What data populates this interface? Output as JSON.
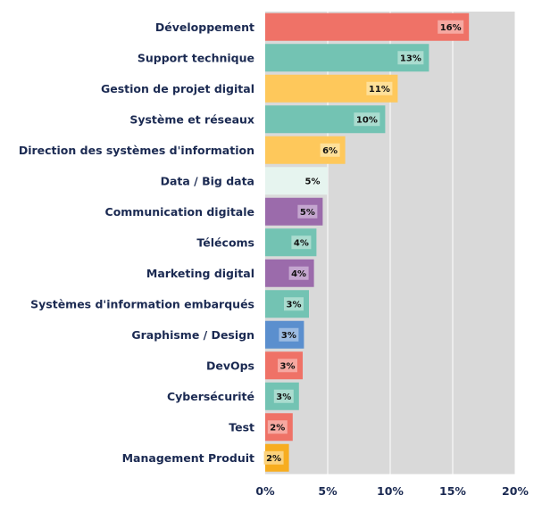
{
  "chart_data": {
    "type": "bar",
    "orientation": "horizontal",
    "title": "",
    "xlabel": "",
    "ylabel": "",
    "xlim": [
      0,
      20
    ],
    "x_ticks": [
      "0%",
      "5%",
      "10%",
      "15%",
      "20%"
    ],
    "grid": true,
    "legend": "none",
    "categories": [
      "Développement",
      "Support technique",
      "Gestion de projet digital",
      "Système et réseaux",
      "Direction des systèmes d'information",
      "Data / Big data",
      "Communication digitale",
      "Télécoms",
      "Marketing digital",
      "Systèmes d'information embarqués",
      "Graphisme / Design",
      "DevOps",
      "Cybersécurité",
      "Test",
      "Management Produit"
    ],
    "values": [
      16.3,
      13.1,
      10.6,
      9.6,
      6.4,
      5.0,
      4.6,
      4.1,
      3.9,
      3.5,
      3.1,
      3.0,
      2.7,
      2.2,
      1.9
    ],
    "value_labels": [
      "16%",
      "13%",
      "11%",
      "10%",
      "6%",
      "5%",
      "5%",
      "4%",
      "4%",
      "3%",
      "3%",
      "3%",
      "3%",
      "2%",
      "2%"
    ],
    "bar_colors": [
      "#ef7267",
      "#73c3b3",
      "#fec85b",
      "#73c3b3",
      "#fec85b",
      "#e6f4ef",
      "#9b6bab",
      "#73c3b3",
      "#9b6bab",
      "#73c3b3",
      "#5b8fce",
      "#ef7267",
      "#73c3b3",
      "#ef7267",
      "#f7ad1f"
    ],
    "label_box_colors": [
      "#f6a8a1",
      "#aadccf",
      "#fee099",
      "#aadccf",
      "#fee099",
      "#e6f4ef",
      "#c4a6cf",
      "#aadccf",
      "#c4a6cf",
      "#aadccf",
      "#9cbbe2",
      "#f6a8a1",
      "#aadccf",
      "#f6a8a1",
      "#fbd27c"
    ],
    "plot_background": "#d9d9d9",
    "grid_color": "#ffffff",
    "label_color": "#1b2a52"
  }
}
